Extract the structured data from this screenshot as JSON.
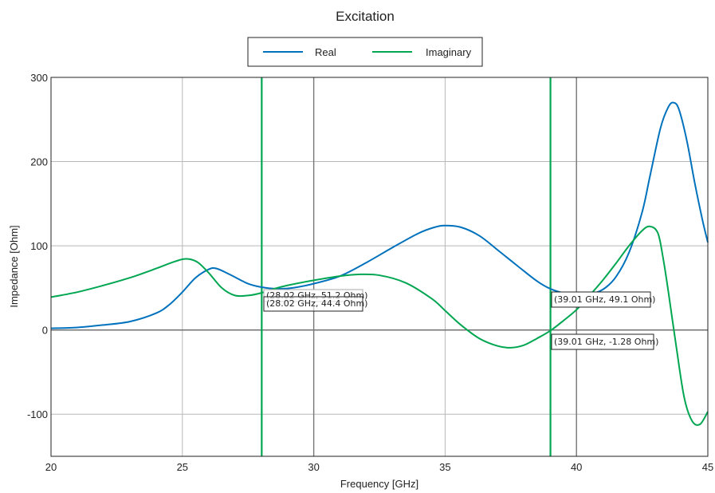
{
  "chart_data": {
    "type": "line",
    "title": "Excitation",
    "xlabel": "Frequency [GHz]",
    "ylabel": "Impedance [Ohm]",
    "xlim": [
      20,
      45
    ],
    "ylim": [
      -150,
      300
    ],
    "xticks": [
      20,
      25,
      30,
      35,
      40,
      45
    ],
    "yticks": [
      -100,
      0,
      100,
      200,
      300
    ],
    "grid": true,
    "legend_position": "top-center",
    "series": [
      {
        "name": "Real",
        "color": "#0072bd",
        "x": [
          20,
          21,
          22,
          23,
          24,
          24.5,
          25,
          25.5,
          26,
          26.3,
          26.8,
          27.5,
          28,
          28.6,
          29.2,
          30,
          31,
          32,
          33,
          34,
          34.6,
          35,
          35.6,
          36.3,
          37,
          37.8,
          38.5,
          39,
          39.5,
          40,
          40.5,
          41,
          41.5,
          42,
          42.5,
          42.8,
          43.2,
          43.5,
          43.7,
          43.9,
          44.2,
          44.5,
          44.8,
          45
        ],
        "y": [
          2,
          3,
          6,
          10,
          20,
          30,
          45,
          62,
          72,
          73,
          66,
          55,
          51,
          49,
          50,
          55,
          64,
          80,
          98,
          115,
          122,
          124,
          122,
          112,
          95,
          75,
          58,
          49,
          44,
          42,
          43,
          48,
          63,
          92,
          140,
          183,
          240,
          265,
          270,
          262,
          225,
          175,
          130,
          104
        ]
      },
      {
        "name": "Imaginary",
        "color": "#00a651",
        "x": [
          20,
          21,
          22,
          23,
          24,
          24.5,
          25,
          25.3,
          25.6,
          26,
          26.5,
          27,
          27.5,
          28,
          28.5,
          29,
          30,
          31,
          31.7,
          32.5,
          33.5,
          34.5,
          35,
          35.6,
          36.3,
          37,
          37.5,
          38,
          38.5,
          39,
          39.5,
          40,
          40.5,
          41,
          41.5,
          42,
          42.5,
          42.8,
          43.1,
          43.3,
          43.5,
          43.8,
          44.1,
          44.4,
          44.7,
          45
        ],
        "y": [
          39,
          45,
          53,
          62,
          73,
          79,
          84,
          84,
          80,
          68,
          50,
          41,
          41,
          44,
          49,
          53,
          59,
          64,
          66,
          65,
          56,
          37,
          23,
          6,
          -10,
          -19,
          -21,
          -18,
          -10,
          -1,
          11,
          24,
          41,
          59,
          79,
          100,
          118,
          123,
          115,
          85,
          45,
          -20,
          -80,
          -108,
          -112,
          -97
        ]
      }
    ],
    "markers": [
      {
        "x": 28.02,
        "color": "#00a651"
      },
      {
        "x": 39.01,
        "color": "#00a651"
      }
    ],
    "annotations": [
      {
        "text": "(28.02 GHz, 51.2 Ohm)"
      },
      {
        "text": "(28.02 GHz, 44.4 Ohm)"
      },
      {
        "text": "(39.01 GHz, 49.1 Ohm)"
      },
      {
        "text": "(39.01 GHz, -1.28 Ohm)"
      }
    ]
  }
}
